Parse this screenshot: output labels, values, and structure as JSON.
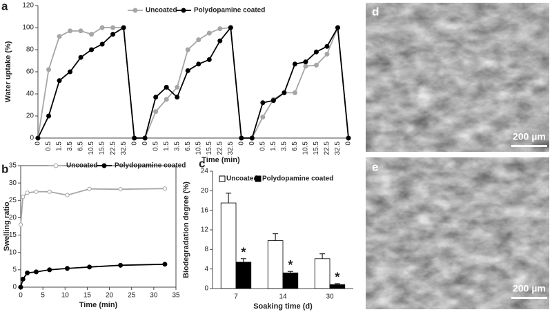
{
  "chart_data": [
    {
      "type": "line",
      "label": "a",
      "xlabel": "Time (min)",
      "ylabel": "Water uptake (%)",
      "categories": [
        "0",
        "0.5",
        "1.5",
        "3.5",
        "6.5",
        "10.5",
        "15.5",
        "22.5",
        "32.5",
        "0",
        "0",
        "0.5",
        "1.5",
        "3.5",
        "6.5",
        "10.5",
        "15.5",
        "22.5",
        "32.5",
        "0",
        "0",
        "0.5",
        "1.5",
        "3.5",
        "6.5",
        "10.5",
        "15.5",
        "22.5",
        "32.5",
        "0"
      ],
      "series": [
        {
          "name": "Uncoated",
          "color": "#a6a6a6",
          "marker": "filled",
          "values": [
            0,
            62,
            92,
            97,
            97,
            94,
            100,
            100,
            100,
            0,
            0,
            24,
            35,
            46,
            80,
            89,
            95,
            99,
            100,
            0,
            0,
            19,
            35,
            41,
            41,
            65,
            66,
            76,
            100,
            0
          ]
        },
        {
          "name": "Polydopamine coated",
          "color": "#000000",
          "marker": "filled",
          "values": [
            0,
            20,
            52,
            60,
            73,
            80,
            85,
            94,
            100,
            0,
            0,
            37,
            46,
            37,
            61,
            67,
            71,
            88,
            100,
            0,
            0,
            32,
            34,
            41,
            67,
            69,
            78,
            83,
            100,
            0
          ]
        }
      ],
      "ylim": [
        0,
        120
      ],
      "yticks": [
        0,
        20,
        40,
        60,
        80,
        100,
        120
      ],
      "frame": "axes"
    },
    {
      "type": "line",
      "label": "b",
      "xlabel": "Time (min)",
      "ylabel": "Swelling ratio",
      "x": [
        0,
        0.5,
        1.5,
        3.5,
        6.5,
        10.5,
        15.5,
        22.5,
        32.5
      ],
      "series": [
        {
          "name": "Uncoated",
          "color": "#a6a6a6",
          "marker": "open",
          "values": [
            18,
            26,
            27.2,
            27.5,
            27.5,
            26.5,
            28.3,
            28.2,
            28.4
          ]
        },
        {
          "name": "Polydopamine coated",
          "color": "#000000",
          "marker": "filled",
          "values": [
            0,
            2.3,
            4.1,
            4.4,
            5,
            5.4,
            5.8,
            6.3,
            6.6
          ]
        }
      ],
      "xlim": [
        0,
        35
      ],
      "xticks": [
        0,
        5,
        10,
        15,
        20,
        25,
        30,
        35
      ],
      "ylim": [
        0,
        35
      ],
      "yticks": [
        0,
        5,
        10,
        15,
        20,
        25,
        30,
        35
      ],
      "frame": "box"
    },
    {
      "type": "bar",
      "label": "c",
      "xlabel": "Soaking time (d)",
      "ylabel": "Biodegradation degree (%)",
      "categories": [
        "7",
        "14",
        "30"
      ],
      "series": [
        {
          "name": "Uncoated",
          "color": "#ffffff",
          "values": [
            17.5,
            9.8,
            6.1
          ],
          "errors": [
            2,
            1.4,
            1
          ]
        },
        {
          "name": "Polydopamine coated",
          "color": "#000000",
          "values": [
            5.4,
            3.2,
            0.8
          ],
          "errors": [
            0.7,
            0.3,
            0.2
          ]
        }
      ],
      "annotations": [
        "*",
        "*",
        "*"
      ],
      "ylim": [
        0,
        24
      ],
      "yticks": [
        0,
        4,
        8,
        12,
        16,
        20,
        24
      ],
      "frame": "axes"
    }
  ],
  "images": [
    {
      "label": "d",
      "scale_bar": "200 µm"
    },
    {
      "label": "e",
      "scale_bar": "200 µm"
    }
  ]
}
